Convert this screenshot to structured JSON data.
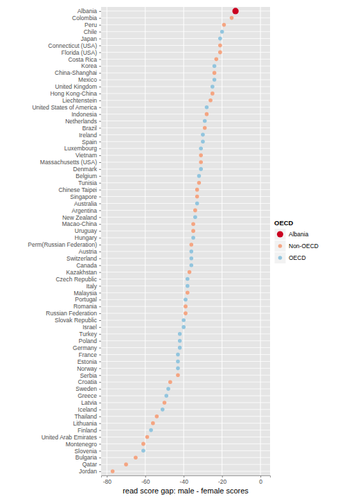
{
  "chart_data": {
    "type": "dot",
    "orientation": "horizontal",
    "x_label": "read score gap: male - female scores",
    "legend_title": "OECD",
    "legend": "right",
    "grid": true,
    "xlim": [
      -83,
      5
    ],
    "xticks": [
      -80,
      -60,
      -40,
      -20,
      0
    ],
    "categories": [
      "Albania",
      "Colombia",
      "Peru",
      "Chile",
      "Japan",
      "Connecticut (USA)",
      "Florida (USA)",
      "Costa Rica",
      "Korea",
      "China-Shanghai",
      "Mexico",
      "United Kingdom",
      "Hong Kong-China",
      "Liechtenstein",
      "United States of America",
      "Indonesia",
      "Netherlands",
      "Brazil",
      "Ireland",
      "Spain",
      "Luxembourg",
      "Vietnam",
      "Massachusetts (USA)",
      "Denmark",
      "Belgium",
      "Tunisia",
      "Chinese Taipei",
      "Singapore",
      "Australia",
      "Argentina",
      "New Zealand",
      "Macao-China",
      "Uruguay",
      "Hungary",
      "Perm(Russian Federation)",
      "Austria",
      "Switzerland",
      "Canada",
      "Kazakhstan",
      "Czech Republic",
      "Italy",
      "Malaysia",
      "Portugal",
      "Romania",
      "Russian Federation",
      "Slovak Republic",
      "Israel",
      "Turkey",
      "Poland",
      "Germany",
      "France",
      "Estonia",
      "Norway",
      "Serbia",
      "Croatia",
      "Sweden",
      "Greece",
      "Latvia",
      "Iceland",
      "Thailand",
      "Lithuania",
      "Finland",
      "United Arab Emirates",
      "Montenegro",
      "Slovenia",
      "Bulgaria",
      "Qatar",
      "Jordan"
    ],
    "series": [
      {
        "name": "Albania",
        "color": "#ca0020",
        "marker": "large-circle",
        "values": [
          -13,
          null,
          null,
          null,
          null,
          null,
          null,
          null,
          null,
          null,
          null,
          null,
          null,
          null,
          null,
          null,
          null,
          null,
          null,
          null,
          null,
          null,
          null,
          null,
          null,
          null,
          null,
          null,
          null,
          null,
          null,
          null,
          null,
          null,
          null,
          null,
          null,
          null,
          null,
          null,
          null,
          null,
          null,
          null,
          null,
          null,
          null,
          null,
          null,
          null,
          null,
          null,
          null,
          null,
          null,
          null,
          null,
          null,
          null,
          null,
          null,
          null,
          null,
          null,
          null,
          null,
          null,
          null
        ]
      },
      {
        "name": "Non-OECD",
        "color": "#f4a582",
        "marker": "circle",
        "values": [
          null,
          -15,
          -19,
          null,
          null,
          -21,
          -21,
          -23,
          null,
          -24,
          null,
          null,
          -25,
          -26,
          null,
          -28,
          null,
          -29,
          null,
          null,
          null,
          -31,
          -31,
          null,
          null,
          -32,
          -33,
          -33,
          null,
          -34,
          null,
          -35,
          -35,
          null,
          -36,
          null,
          null,
          null,
          -37,
          null,
          null,
          -38,
          null,
          -39,
          -39,
          null,
          null,
          null,
          null,
          null,
          null,
          null,
          null,
          -43,
          -47,
          null,
          null,
          -50,
          null,
          -54,
          -56,
          null,
          -59,
          -61,
          null,
          -65,
          -70,
          -77
        ]
      },
      {
        "name": "OECD",
        "color": "#92c5de",
        "marker": "circle",
        "values": [
          null,
          null,
          null,
          -20,
          -21,
          null,
          null,
          null,
          -24,
          null,
          -24,
          -25,
          null,
          null,
          -28,
          null,
          -29,
          null,
          -30,
          -30,
          -31,
          null,
          null,
          -31,
          -32,
          null,
          null,
          null,
          -33,
          null,
          -34,
          null,
          null,
          -35,
          null,
          -36,
          -36,
          -36,
          null,
          -38,
          -38,
          null,
          -39,
          null,
          null,
          -40,
          -40,
          -42,
          -42,
          -42,
          -43,
          -43,
          -43,
          null,
          null,
          -48,
          -49,
          null,
          -51,
          null,
          null,
          -57,
          null,
          null,
          -61,
          null,
          null,
          null
        ]
      }
    ]
  }
}
